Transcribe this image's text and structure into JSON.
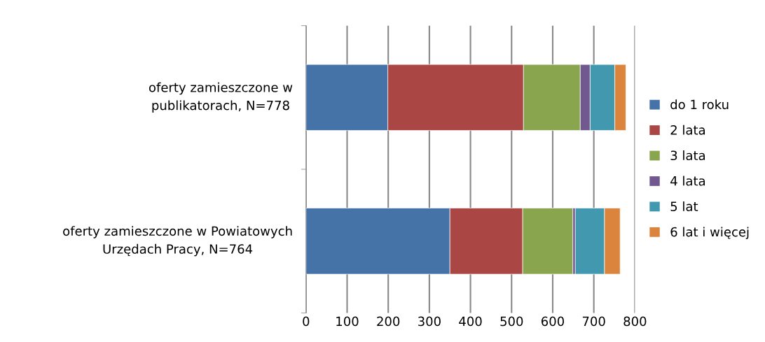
{
  "chart_data": {
    "type": "bar",
    "orientation": "horizontal",
    "stacked": true,
    "categories": [
      "oferty zamieszczone w publikatorach, N=778",
      "oferty zamieszczone w Powiatowych Urzędach Pracy, N=764"
    ],
    "series": [
      {
        "name": "do 1 roku",
        "color": "#4572a7",
        "values": [
          199,
          350
        ]
      },
      {
        "name": "2 lata",
        "color": "#aa4643",
        "values": [
          330,
          177
        ]
      },
      {
        "name": "3 lata",
        "color": "#89a54e",
        "values": [
          138,
          122
        ]
      },
      {
        "name": "4 lata",
        "color": "#71588f",
        "values": [
          24,
          6
        ]
      },
      {
        "name": "5 lat",
        "color": "#4198af",
        "values": [
          60,
          71
        ]
      },
      {
        "name": "6 lat i więcej",
        "color": "#db843d",
        "values": [
          27,
          38
        ]
      }
    ],
    "xlim": [
      0,
      800
    ],
    "xticks": [
      0,
      100,
      200,
      300,
      400,
      500,
      600,
      700,
      800
    ],
    "grid": "x",
    "legend": "right"
  }
}
